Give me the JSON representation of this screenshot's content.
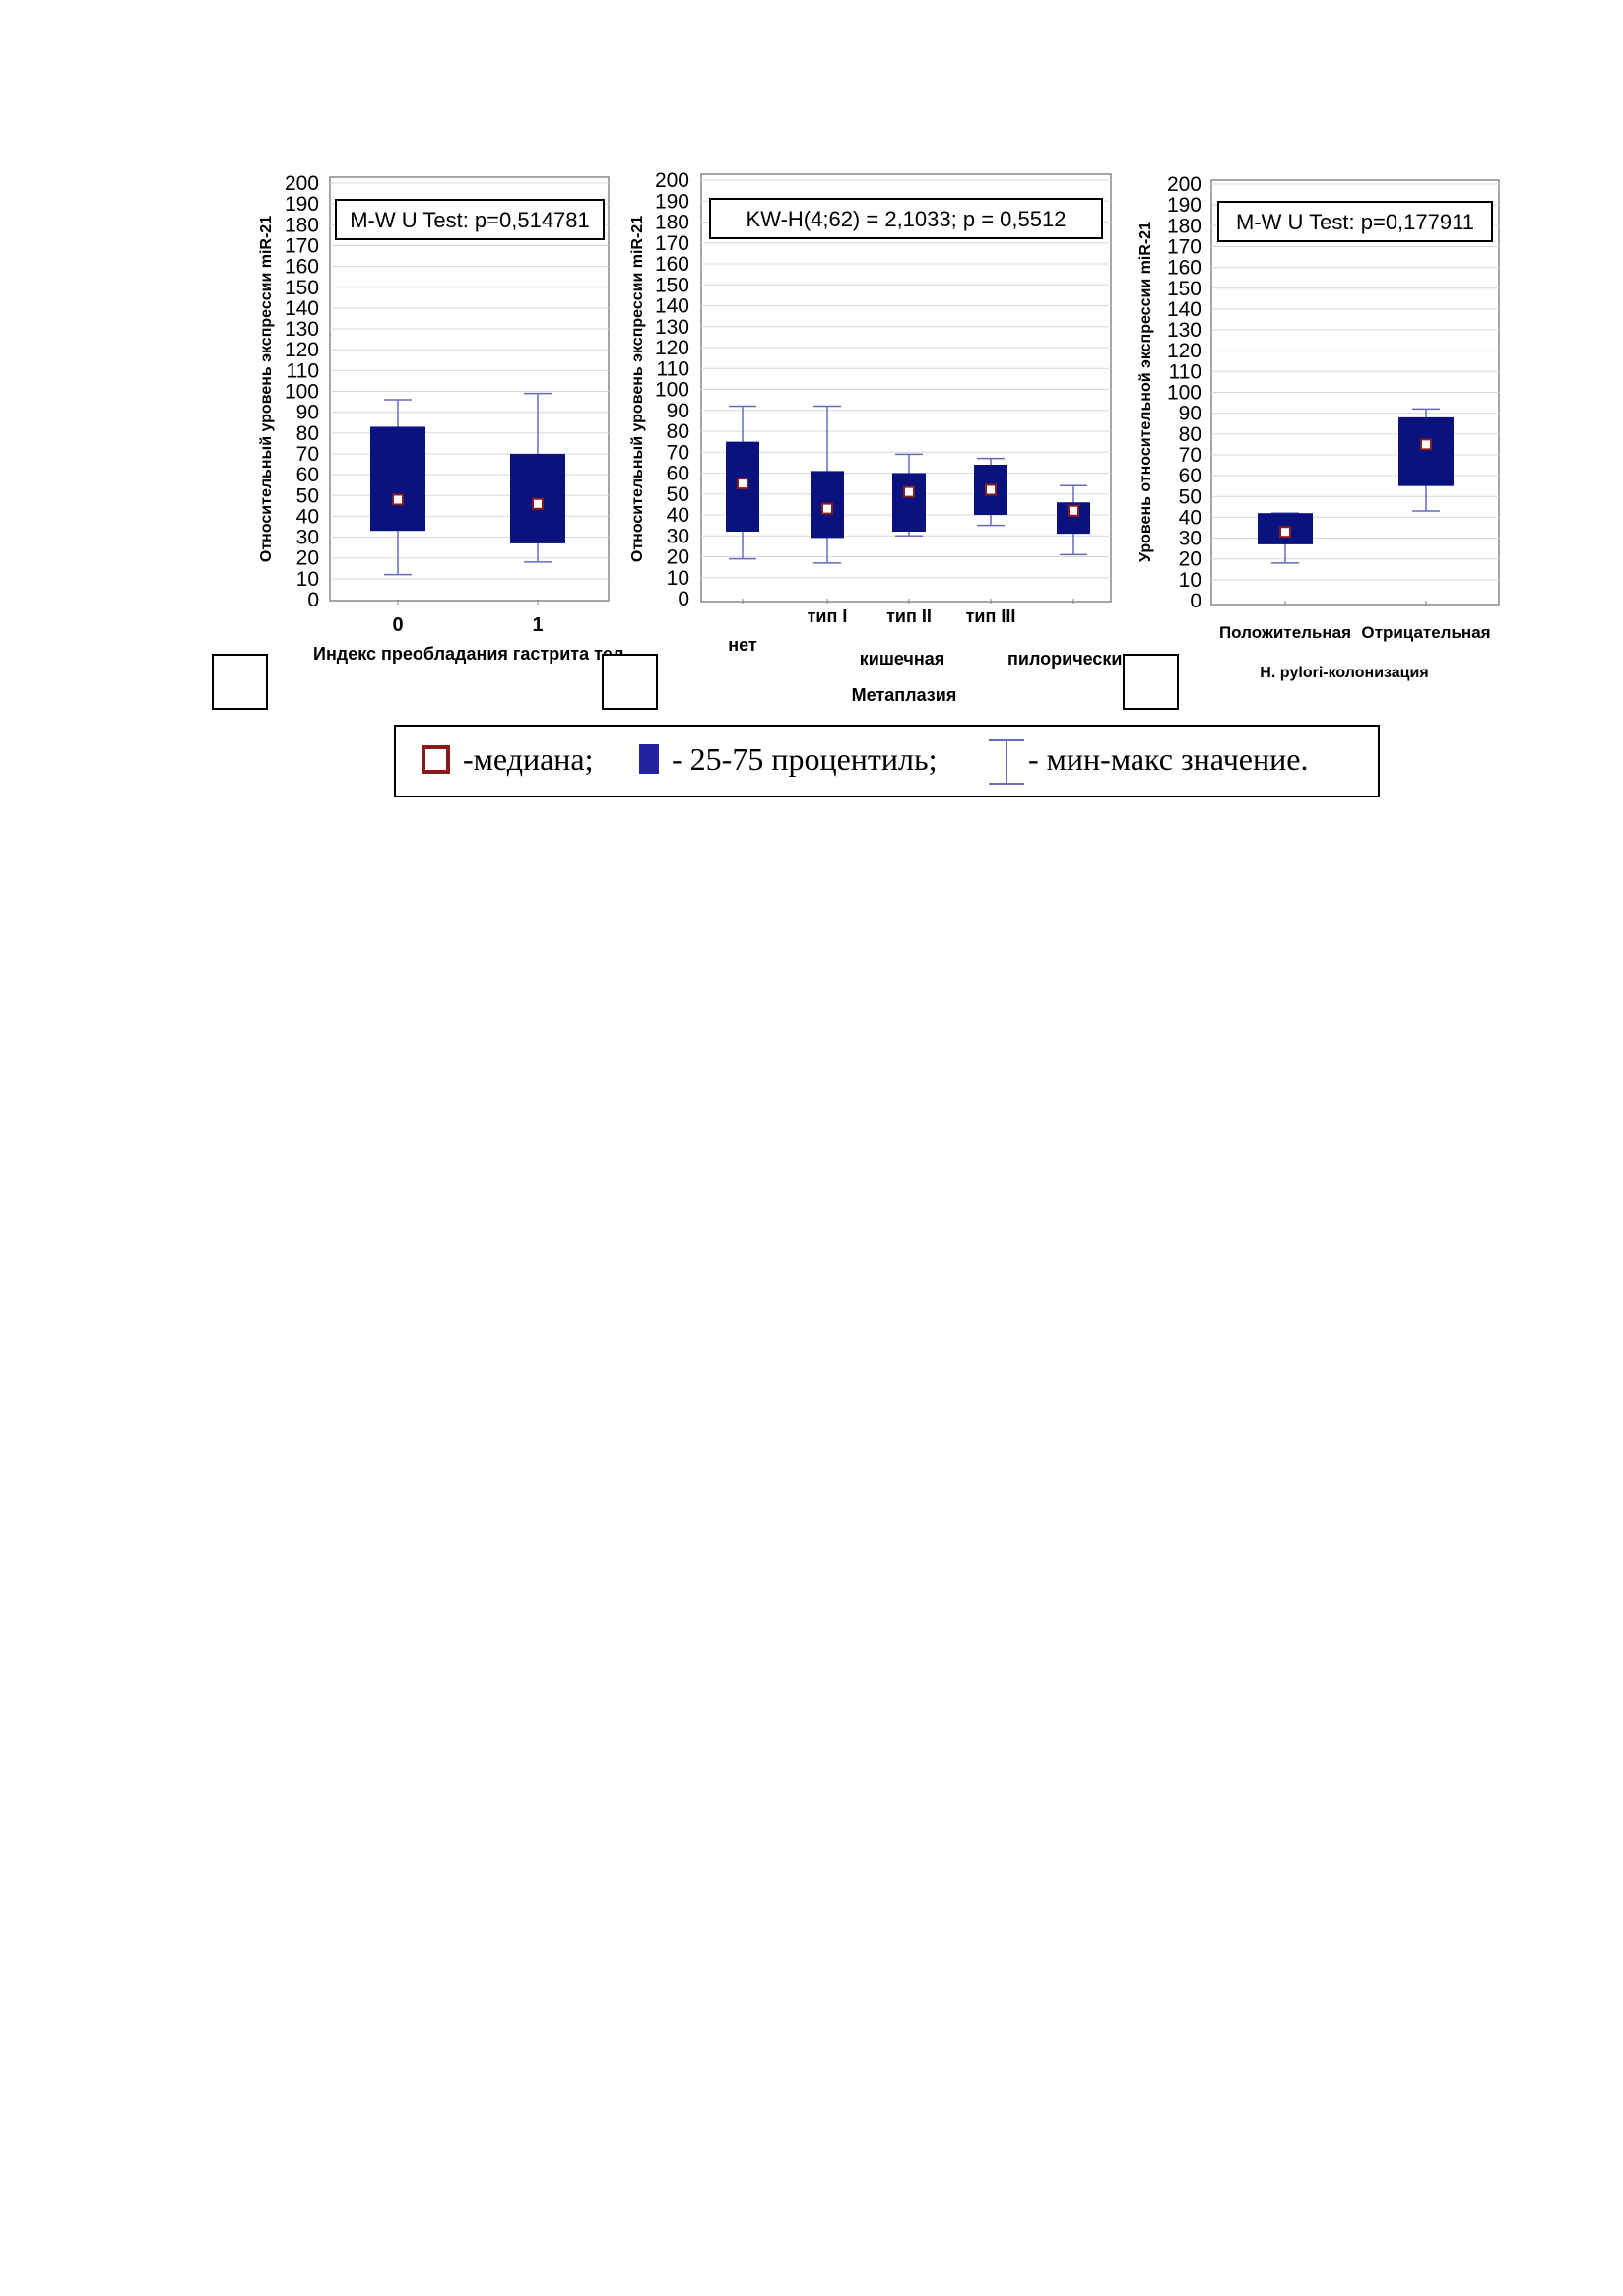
{
  "colors": {
    "box_fill": "#0a1280",
    "whisker": "#6868c4",
    "median_border": "#8b1a1a",
    "median_fill": "#ffffff",
    "grid": "#d8d8d8",
    "legend_box_fill": "#2323a0"
  },
  "chart_data": [
    {
      "type": "box",
      "stat_text": "M-W U Test: p=0,514781",
      "ylabel": "Относительный уровень экспрессии miR-21",
      "xlabel": "Индекс преобладания гастрита тел",
      "ylim": [
        0,
        200
      ],
      "yticks": [
        0,
        10,
        20,
        30,
        40,
        50,
        60,
        70,
        80,
        90,
        100,
        110,
        120,
        130,
        140,
        150,
        160,
        170,
        180,
        190,
        200
      ],
      "grid": true,
      "categories": [
        {
          "label": "0",
          "min": 12,
          "q1": 33,
          "median": 48,
          "q3": 83,
          "max": 96
        },
        {
          "label": "1",
          "min": 18,
          "q1": 27,
          "median": 46,
          "q3": 70,
          "max": 99
        }
      ]
    },
    {
      "type": "box",
      "stat_text": "KW-H(4;62) = 2,1033; p = 0,5512",
      "ylabel": "Относительный уровень экспрессии miR-21",
      "xlabel": "Метаплазия",
      "ylim": [
        0,
        200
      ],
      "yticks": [
        0,
        10,
        20,
        30,
        40,
        50,
        60,
        70,
        80,
        90,
        100,
        110,
        120,
        130,
        140,
        150,
        160,
        170,
        180,
        190,
        200
      ],
      "grid": true,
      "group_labels": [
        "кишечная",
        "пилорически"
      ],
      "categories": [
        {
          "label": "нет",
          "min": 19,
          "q1": 32,
          "median": 55,
          "q3": 75,
          "max": 92
        },
        {
          "label": "тип I",
          "min": 17,
          "q1": 29,
          "median": 43,
          "q3": 61,
          "max": 92
        },
        {
          "label": "тип II",
          "min": 30,
          "q1": 32,
          "median": 51,
          "q3": 60,
          "max": 69
        },
        {
          "label": "тип III",
          "min": 35,
          "q1": 40,
          "median": 52,
          "q3": 64,
          "max": 67
        },
        {
          "label": "",
          "min": 21,
          "q1": 31,
          "median": 42,
          "q3": 46,
          "max": 54
        }
      ]
    },
    {
      "type": "box",
      "stat_text": "M-W U Test: p=0,177911",
      "ylabel": "Уровень относительной экспрессии miR-21",
      "xlabel": "H. pylori-колонизация",
      "ylim": [
        0,
        200
      ],
      "yticks": [
        0,
        10,
        20,
        30,
        40,
        50,
        60,
        70,
        80,
        90,
        100,
        110,
        120,
        130,
        140,
        150,
        160,
        170,
        180,
        190,
        200
      ],
      "grid": true,
      "categories": [
        {
          "label": "Положительная",
          "min": 18,
          "q1": 27,
          "median": 33,
          "q3": 42,
          "max": 42
        },
        {
          "label": "Отрицательная",
          "min": 43,
          "q1": 55,
          "median": 75,
          "q3": 88,
          "max": 92
        }
      ]
    }
  ],
  "legend": {
    "median": "-медиана;",
    "percentile": "- 25-75 процентиль;",
    "minmax": "- мин-макс значение."
  }
}
